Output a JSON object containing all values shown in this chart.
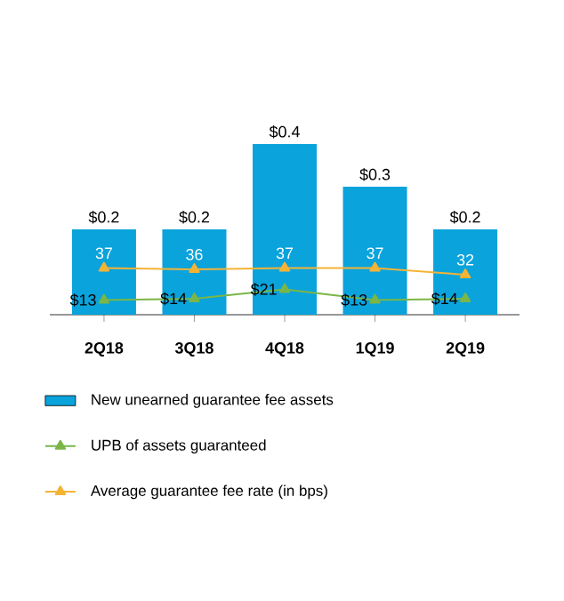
{
  "chart_data": {
    "type": "bar",
    "categories": [
      "2Q18",
      "3Q18",
      "4Q18",
      "1Q19",
      "2Q19"
    ],
    "series": [
      {
        "name": "New unearned guarantee fee assets",
        "color": "#0aa3dc",
        "values": [
          0.2,
          0.2,
          0.4,
          0.3,
          0.2
        ],
        "value_labels": [
          "$0.2",
          "$0.2",
          "$0.4",
          "$0.3",
          "$0.2"
        ]
      },
      {
        "name": "UPB of assets guaranteed",
        "type": "line",
        "axis": "y2",
        "color": "#7ab648",
        "marker": "triangle",
        "values": [
          13,
          14,
          21,
          13,
          14
        ],
        "value_labels": [
          "$13",
          "$14",
          "$21",
          "$13",
          "$14"
        ]
      },
      {
        "name": "Average guarantee fee rate (in bps)",
        "type": "line",
        "axis": "y2",
        "color": "#f5b335",
        "marker": "triangle",
        "values": [
          37,
          36,
          37,
          37,
          32
        ],
        "value_labels": [
          "37",
          "36",
          "37",
          "37",
          "32"
        ]
      }
    ],
    "ylim": [
      0,
      0.4
    ],
    "y2lim": [
      2,
      130
    ],
    "tick_labels": "x",
    "legend": "bottom"
  }
}
